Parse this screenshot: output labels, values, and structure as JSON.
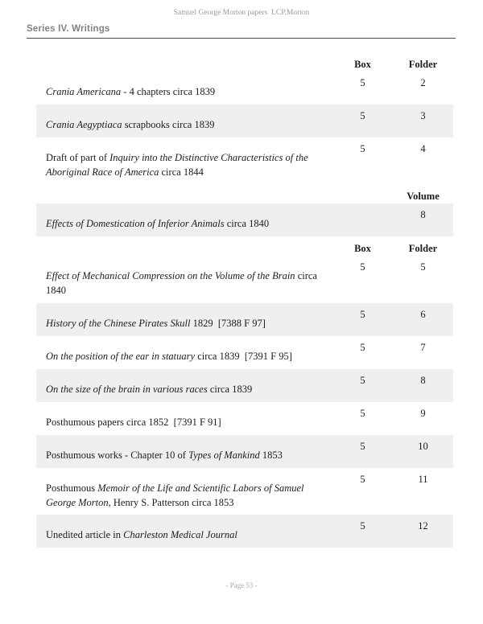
{
  "page": {
    "doc_header": "Samuel George Morton papers  LCP.Morton",
    "series_title": "Series IV. Writings",
    "footer": "- Page 53 -"
  },
  "labels": {
    "box": "Box",
    "folder": "Folder",
    "volume": "Volume"
  },
  "colors": {
    "row_shade": "#efefef",
    "text": "#1c1c1c",
    "muted_gray": "#9a9a9a",
    "series_gray": "#818181",
    "rule": "#4a4a4a"
  },
  "rows": [
    {
      "segments": [
        {
          "t": "Crania Americana",
          "i": true
        },
        {
          "t": " - 4 chapters circa 1839"
        }
      ],
      "box": "5",
      "folder": "2"
    },
    {
      "segments": [
        {
          "t": "Crania Aegyptiaca",
          "i": true
        },
        {
          "t": " scrapbooks circa 1839"
        }
      ],
      "box": "5",
      "folder": "3"
    },
    {
      "segments": [
        {
          "t": "Draft of part of "
        },
        {
          "t": "Inquiry into the Distinctive Characteristics of the Aboriginal Race of America",
          "i": true
        },
        {
          "t": " circa 1844"
        }
      ],
      "box": "5",
      "folder": "4"
    },
    {
      "segments": [
        {
          "t": "Effects of Domestication of Inferior Animals",
          "i": true
        },
        {
          "t": " circa 1840"
        }
      ],
      "volume": "8"
    },
    {
      "segments": [
        {
          "t": "Effect of Mechanical Compression on the Volume of the Brain",
          "i": true
        },
        {
          "t": " circa 1840"
        }
      ],
      "box": "5",
      "folder": "5"
    },
    {
      "segments": [
        {
          "t": "History of the Chinese Pirates Skull",
          "i": true
        },
        {
          "t": " 1829  [7388 F 97]"
        }
      ],
      "box": "5",
      "folder": "6"
    },
    {
      "segments": [
        {
          "t": "On the position of the ear in statuary",
          "i": true
        },
        {
          "t": " circa 1839  [7391 F 95]"
        }
      ],
      "box": "5",
      "folder": "7"
    },
    {
      "segments": [
        {
          "t": "On the size of the brain in various races",
          "i": true
        },
        {
          "t": " circa 1839"
        }
      ],
      "box": "5",
      "folder": "8"
    },
    {
      "segments": [
        {
          "t": "Posthumous papers circa 1852  [7391 F 91]"
        }
      ],
      "box": "5",
      "folder": "9"
    },
    {
      "segments": [
        {
          "t": "Posthumous works - Chapter 10 of "
        },
        {
          "t": "Types of Mankind",
          "i": true
        },
        {
          "t": " 1853"
        }
      ],
      "box": "5",
      "folder": "10"
    },
    {
      "segments": [
        {
          "t": "Posthumous "
        },
        {
          "t": "Memoir of the Life and Scientific Labors of Samuel George Morton",
          "i": true
        },
        {
          "t": ", Henry S. Patterson circa 1853"
        }
      ],
      "box": "5",
      "folder": "11"
    },
    {
      "segments": [
        {
          "t": "Unedited article in "
        },
        {
          "t": "Charleston Medical Journal",
          "i": true
        }
      ],
      "box": "5",
      "folder": "12"
    }
  ]
}
